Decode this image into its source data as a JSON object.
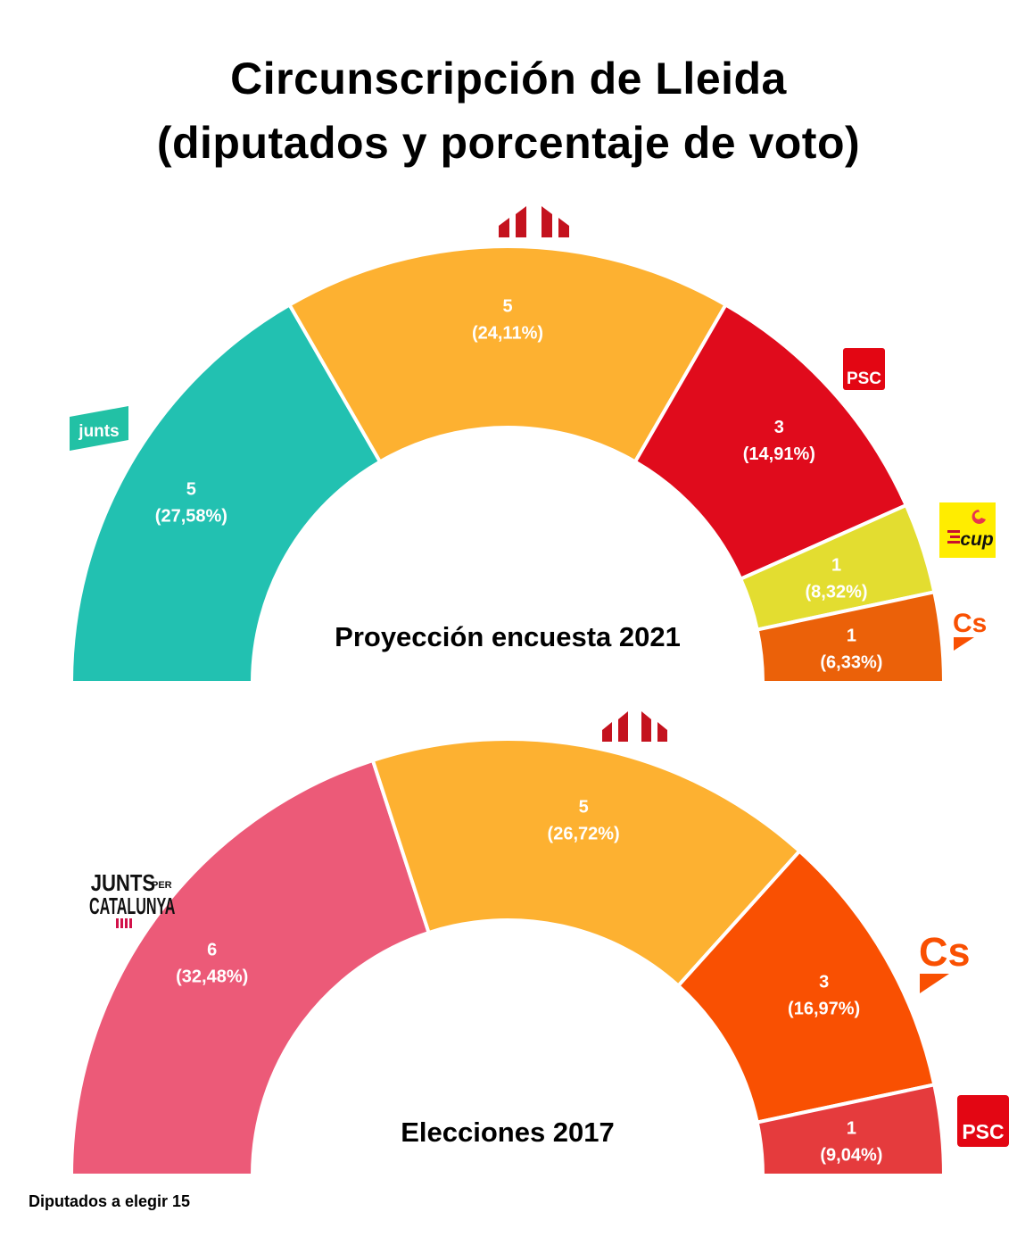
{
  "title_line1": "Circunscripción de Lleida",
  "title_line2": "(diputados y porcentaje de voto)",
  "footnote": "Diputados a elegir 15",
  "chart_data": [
    {
      "type": "pie",
      "subtype": "parliament-semicircle",
      "caption": "Proyección encuesta 2021",
      "total_seats": 15,
      "series": [
        {
          "party": "Junts",
          "logo": "junts-logo",
          "seats": 5,
          "percent": 27.58,
          "seats_label": "5",
          "percent_label": "(27,58%)",
          "color": "#22C1B1"
        },
        {
          "party": "ERC",
          "logo": "erc-logo",
          "seats": 5,
          "percent": 24.11,
          "seats_label": "5",
          "percent_label": "(24,11%)",
          "color": "#FDB131"
        },
        {
          "party": "PSC",
          "logo": "psc-logo",
          "seats": 3,
          "percent": 14.91,
          "seats_label": "3",
          "percent_label": "(14,91%)",
          "color": "#E00B1C"
        },
        {
          "party": "CUP",
          "logo": "cup-logo",
          "seats": 1,
          "percent": 8.32,
          "seats_label": "1",
          "percent_label": "(8,32%)",
          "color": "#E3DD30"
        },
        {
          "party": "Cs",
          "logo": "cs-logo",
          "seats": 1,
          "percent": 6.33,
          "seats_label": "1",
          "percent_label": "(6,33%)",
          "color": "#EB6109"
        }
      ]
    },
    {
      "type": "pie",
      "subtype": "parliament-semicircle",
      "caption": "Elecciones 2017",
      "total_seats": 15,
      "series": [
        {
          "party": "Junts per Catalunya",
          "logo": "junts-per-catalunya-logo",
          "seats": 6,
          "percent": 32.48,
          "seats_label": "6",
          "percent_label": "(32,48%)",
          "color": "#EC5A78"
        },
        {
          "party": "ERC",
          "logo": "erc-logo",
          "seats": 5,
          "percent": 26.72,
          "seats_label": "5",
          "percent_label": "(26,72%)",
          "color": "#FDB131"
        },
        {
          "party": "Cs",
          "logo": "cs-logo",
          "seats": 3,
          "percent": 16.97,
          "seats_label": "3",
          "percent_label": "(16,97%)",
          "color": "#F95002"
        },
        {
          "party": "PSC",
          "logo": "psc-logo",
          "seats": 1,
          "percent": 9.04,
          "seats_label": "1",
          "percent_label": "(9,04%)",
          "color": "#E53B3D"
        }
      ]
    }
  ],
  "logos": {
    "junts_text": "junts",
    "psc_text": "PSC",
    "cup_text": "cup",
    "cs_text": "Cs",
    "jxcat_line1": "JUNTS",
    "jxcat_per": "PER",
    "jxcat_line2": "CATALUNYA",
    "colors": {
      "junts": "#22C1A5",
      "erc": "#C4121E",
      "psc": "#E30613",
      "cup_bg": "#FFED00",
      "cup_red": "#C8102E",
      "cs": "#F95002",
      "jxcat_bars": "#D2124A"
    }
  }
}
